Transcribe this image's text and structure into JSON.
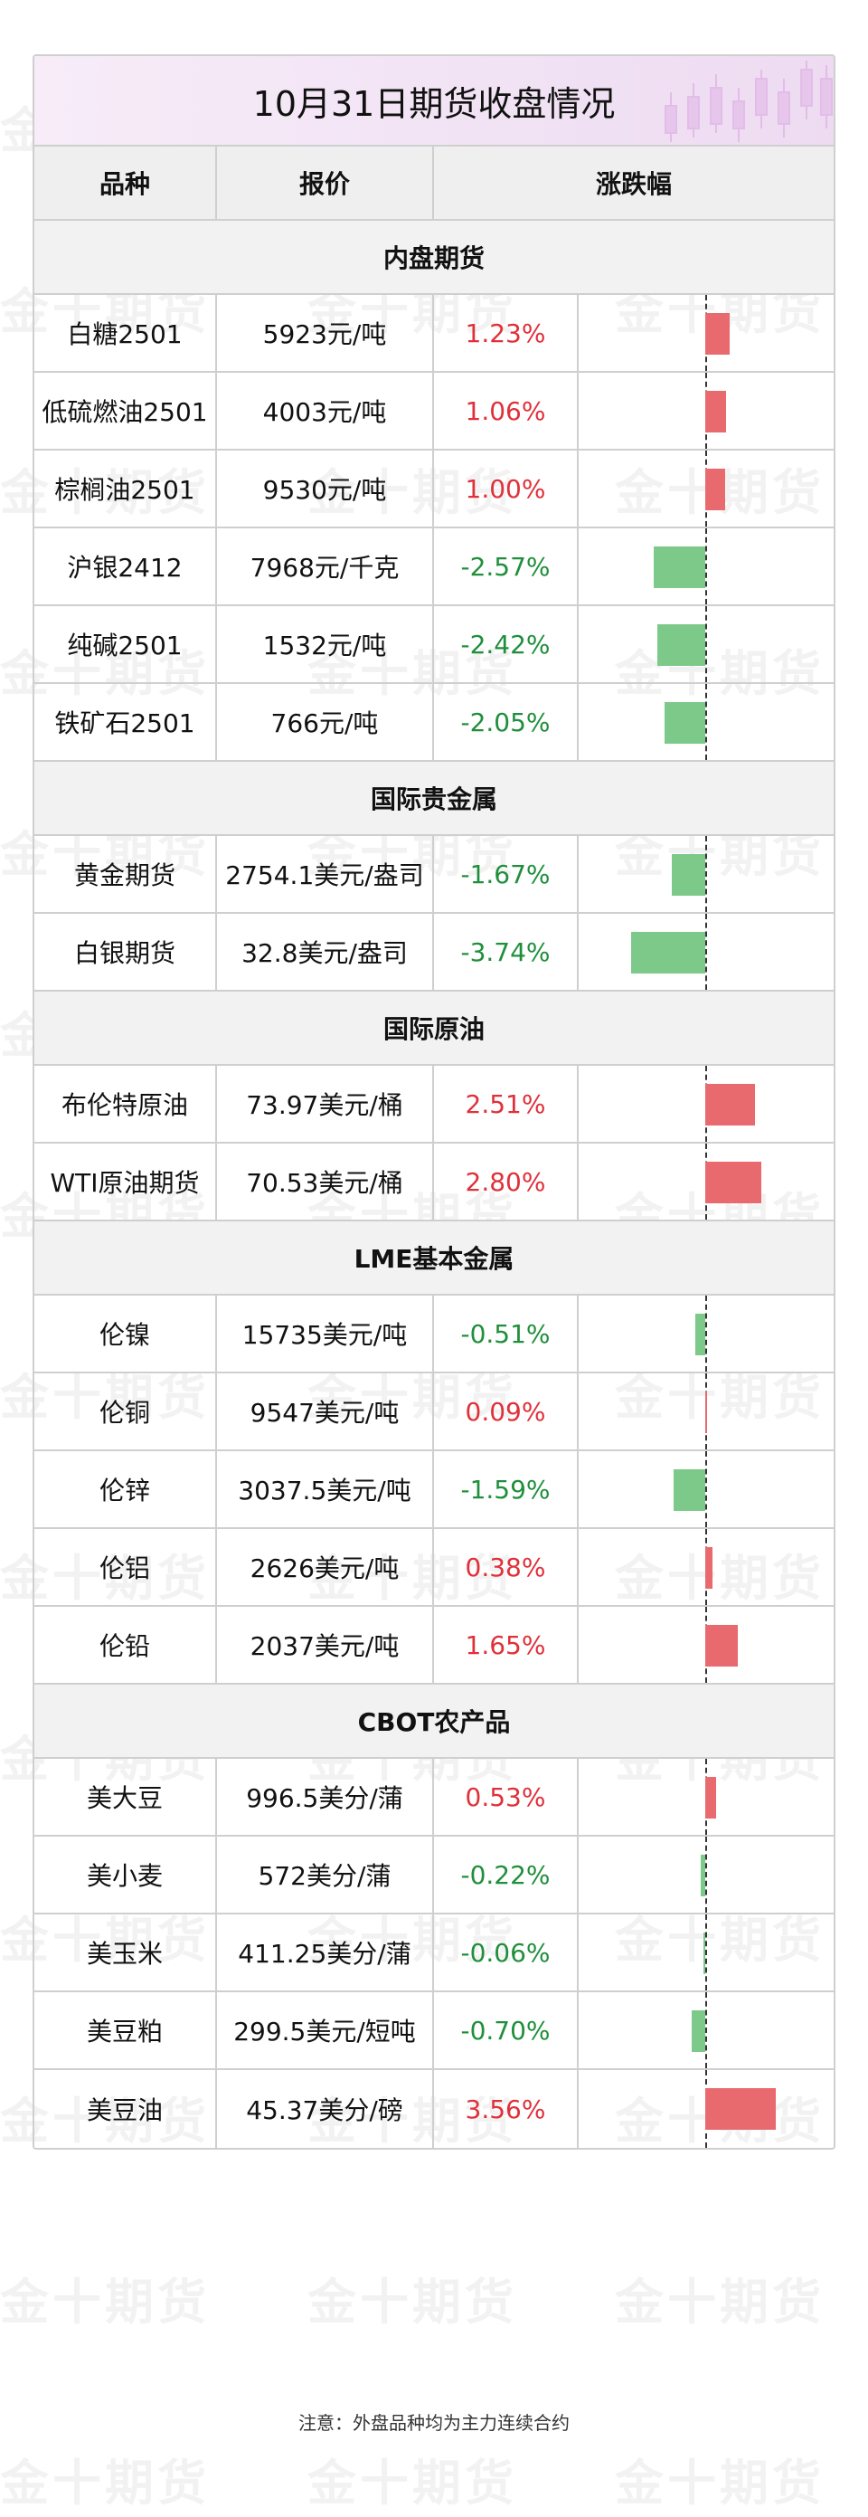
{
  "title": "10月31日期货收盘情况",
  "headers": {
    "variety": "品种",
    "price": "报价",
    "change": "涨跌幅"
  },
  "watermark": "金十期货",
  "colors": {
    "up": "#e0303a",
    "down": "#1f8f3b",
    "bar_up": "#e8696e",
    "bar_down": "#7cc98a"
  },
  "sections": [
    {
      "name": "内盘期货",
      "items": [
        {
          "name": "白糖2501",
          "price": "5923元/吨",
          "change": "1.23%",
          "value": 1.23
        },
        {
          "name": "低硫燃油2501",
          "price": "4003元/吨",
          "change": "1.06%",
          "value": 1.06
        },
        {
          "name": "棕榈油2501",
          "price": "9530元/吨",
          "change": "1.00%",
          "value": 1.0
        },
        {
          "name": "沪银2412",
          "price": "7968元/千克",
          "change": "-2.57%",
          "value": -2.57
        },
        {
          "name": "纯碱2501",
          "price": "1532元/吨",
          "change": "-2.42%",
          "value": -2.42
        },
        {
          "name": "铁矿石2501",
          "price": "766元/吨",
          "change": "-2.05%",
          "value": -2.05
        }
      ]
    },
    {
      "name": "国际贵金属",
      "items": [
        {
          "name": "黄金期货",
          "price": "2754.1美元/盎司",
          "change": "-1.67%",
          "value": -1.67
        },
        {
          "name": "白银期货",
          "price": "32.8美元/盎司",
          "change": "-3.74%",
          "value": -3.74
        }
      ]
    },
    {
      "name": "国际原油",
      "items": [
        {
          "name": "布伦特原油",
          "price": "73.97美元/桶",
          "change": "2.51%",
          "value": 2.51
        },
        {
          "name": "WTI原油期货",
          "price": "70.53美元/桶",
          "change": "2.80%",
          "value": 2.8
        }
      ]
    },
    {
      "name": "LME基本金属",
      "items": [
        {
          "name": "伦镍",
          "price": "15735美元/吨",
          "change": "-0.51%",
          "value": -0.51
        },
        {
          "name": "伦铜",
          "price": "9547美元/吨",
          "change": "0.09%",
          "value": 0.09
        },
        {
          "name": "伦锌",
          "price": "3037.5美元/吨",
          "change": "-1.59%",
          "value": -1.59
        },
        {
          "name": "伦铝",
          "price": "2626美元/吨",
          "change": "0.38%",
          "value": 0.38
        },
        {
          "name": "伦铅",
          "price": "2037美元/吨",
          "change": "1.65%",
          "value": 1.65
        }
      ]
    },
    {
      "name": "CBOT农产品",
      "items": [
        {
          "name": "美大豆",
          "price": "996.5美分/蒲",
          "change": "0.53%",
          "value": 0.53
        },
        {
          "name": "美小麦",
          "price": "572美分/蒲",
          "change": "-0.22%",
          "value": -0.22
        },
        {
          "name": "美玉米",
          "price": "411.25美分/蒲",
          "change": "-0.06%",
          "value": -0.06
        },
        {
          "name": "美豆粕",
          "price": "299.5美元/短吨",
          "change": "-0.70%",
          "value": -0.7
        },
        {
          "name": "美豆油",
          "price": "45.37美分/磅",
          "change": "3.56%",
          "value": 3.56
        }
      ]
    }
  ],
  "footnote": "注意：外盘品种均为主力连续合约"
}
